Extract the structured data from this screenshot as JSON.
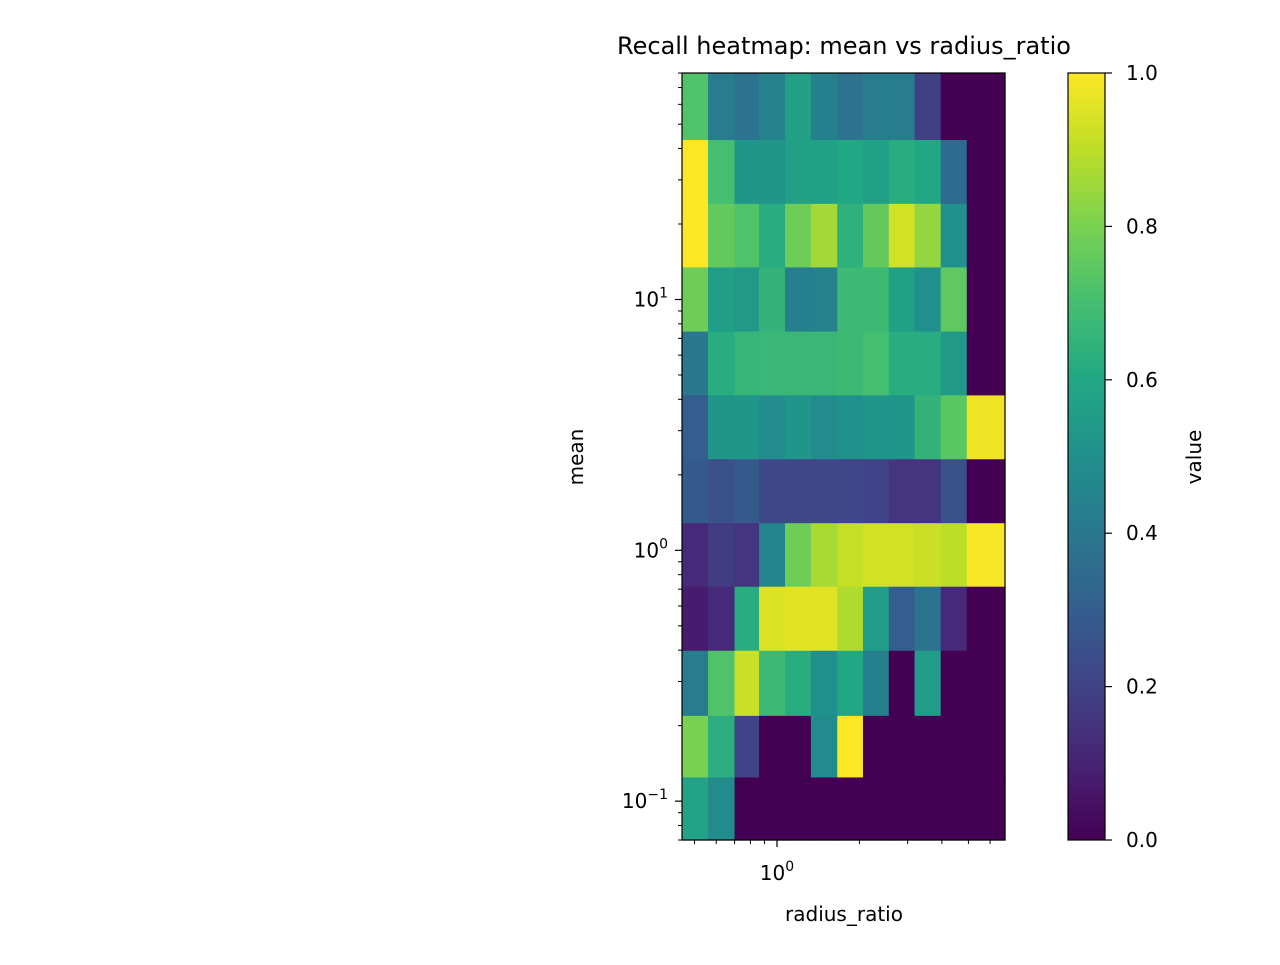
{
  "chart_data": {
    "type": "heatmap",
    "title": "Recall heatmap: mean vs radius_ratio",
    "xlabel": "radius_ratio",
    "ylabel": "mean",
    "x_scale": "log",
    "y_scale": "log",
    "xlim": [
      0.45,
      6.8
    ],
    "ylim": [
      0.07,
      80
    ],
    "x_ticks": [
      {
        "value": 1,
        "base": "10",
        "exp": "0"
      }
    ],
    "y_ticks": [
      {
        "value": 0.1,
        "base": "10",
        "exp": "−1"
      },
      {
        "value": 1,
        "base": "10",
        "exp": "0"
      },
      {
        "value": 10,
        "base": "10",
        "exp": "1"
      }
    ],
    "x_edges": [
      0.45,
      0.56,
      0.7,
      0.86,
      1.07,
      1.33,
      1.66,
      2.06,
      2.56,
      3.18,
      3.96,
      4.93,
      6.8
    ],
    "y_edges": [
      0.07,
      0.125,
      0.22,
      0.4,
      0.72,
      1.29,
      2.32,
      4.17,
      7.49,
      13.5,
      24.2,
      43.5,
      80
    ],
    "values": [
      [
        0.58,
        0.48,
        0,
        0,
        0,
        0,
        0,
        0,
        0,
        0,
        0,
        0
      ],
      [
        0.8,
        0.63,
        0.2,
        0,
        0,
        0.48,
        1.0,
        0,
        0,
        0,
        0,
        0
      ],
      [
        0.42,
        0.72,
        0.92,
        0.68,
        0.62,
        0.5,
        0.6,
        0.43,
        0,
        0.55,
        0,
        0
      ],
      [
        0.08,
        0.12,
        0.62,
        0.95,
        0.96,
        0.96,
        0.88,
        0.55,
        0.3,
        0.38,
        0.12,
        0
      ],
      [
        0.12,
        0.18,
        0.16,
        0.45,
        0.78,
        0.87,
        0.91,
        0.93,
        0.93,
        0.92,
        0.9,
        0.99
      ],
      [
        0.29,
        0.25,
        0.28,
        0.22,
        0.22,
        0.22,
        0.22,
        0.2,
        0.16,
        0.16,
        0.25,
        0
      ],
      [
        0.3,
        0.52,
        0.52,
        0.48,
        0.52,
        0.48,
        0.5,
        0.52,
        0.52,
        0.65,
        0.74,
        0.98
      ],
      [
        0.4,
        0.62,
        0.66,
        0.67,
        0.67,
        0.67,
        0.68,
        0.7,
        0.62,
        0.62,
        0.54,
        0
      ],
      [
        0.78,
        0.56,
        0.54,
        0.65,
        0.43,
        0.44,
        0.68,
        0.68,
        0.57,
        0.5,
        0.75,
        0
      ],
      [
        1.0,
        0.76,
        0.72,
        0.62,
        0.78,
        0.86,
        0.64,
        0.76,
        0.93,
        0.84,
        0.5,
        0
      ],
      [
        1.0,
        0.7,
        0.52,
        0.52,
        0.57,
        0.57,
        0.6,
        0.57,
        0.62,
        0.6,
        0.35,
        0
      ],
      [
        0.72,
        0.42,
        0.38,
        0.44,
        0.57,
        0.43,
        0.38,
        0.42,
        0.42,
        0.19,
        0,
        0
      ]
    ],
    "colorbar": {
      "label": "value",
      "colormap": "viridis",
      "range": [
        0.0,
        1.0
      ],
      "ticks": [
        "0.0",
        "0.2",
        "0.4",
        "0.6",
        "0.8",
        "1.0"
      ]
    },
    "grid": false,
    "legend": "none"
  }
}
